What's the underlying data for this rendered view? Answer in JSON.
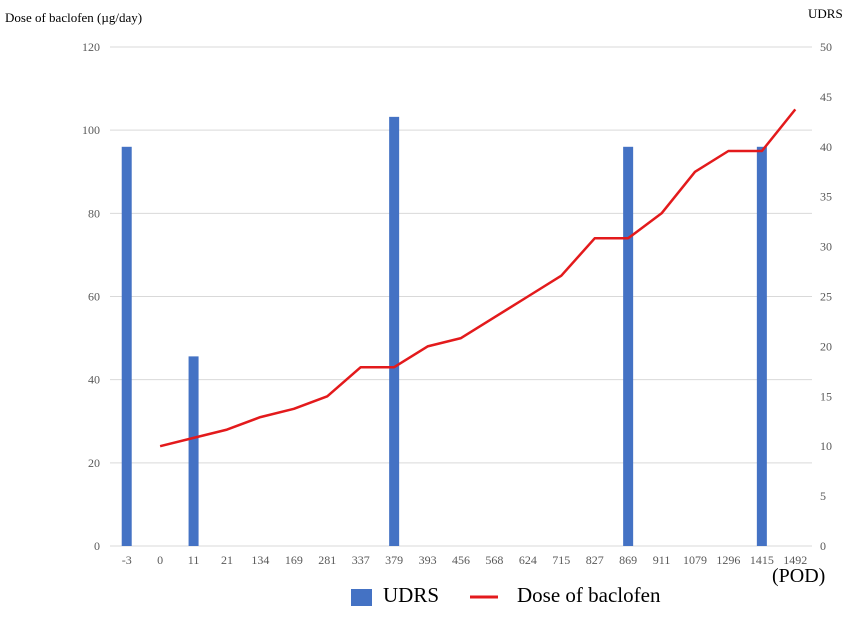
{
  "chart_data": {
    "type": "bar",
    "categories": [
      "-3",
      "0",
      "11",
      "21",
      "134",
      "169",
      "281",
      "337",
      "379",
      "393",
      "456",
      "568",
      "624",
      "715",
      "827",
      "869",
      "911",
      "1079",
      "1296",
      "1415",
      "1492"
    ],
    "x_unit_label": "(POD)",
    "left_axis": {
      "label": "Dose of baclofen  (µg/day)",
      "ylim": [
        0,
        120
      ],
      "ticks": [
        0,
        20,
        40,
        60,
        80,
        100,
        120
      ]
    },
    "right_axis": {
      "label": "UDRS",
      "ylim": [
        0,
        50
      ],
      "ticks": [
        0,
        5,
        10,
        15,
        20,
        25,
        30,
        35,
        40,
        45,
        50
      ]
    },
    "grid": true,
    "legend_position": "bottom",
    "series": [
      {
        "name": "UDRS",
        "type": "bar",
        "axis": "right",
        "color": "#4472c4",
        "values": [
          40,
          null,
          19,
          null,
          null,
          null,
          null,
          null,
          43,
          null,
          null,
          null,
          null,
          null,
          null,
          40,
          null,
          null,
          null,
          40,
          null
        ]
      },
      {
        "name": "Dose of baclofen",
        "type": "line",
        "axis": "left",
        "color": "#e31a1c",
        "values": [
          null,
          24,
          26,
          28,
          31,
          33,
          36,
          43,
          43,
          48,
          50,
          55,
          60,
          65,
          74,
          74,
          80,
          90,
          95,
          95,
          105
        ]
      }
    ]
  }
}
